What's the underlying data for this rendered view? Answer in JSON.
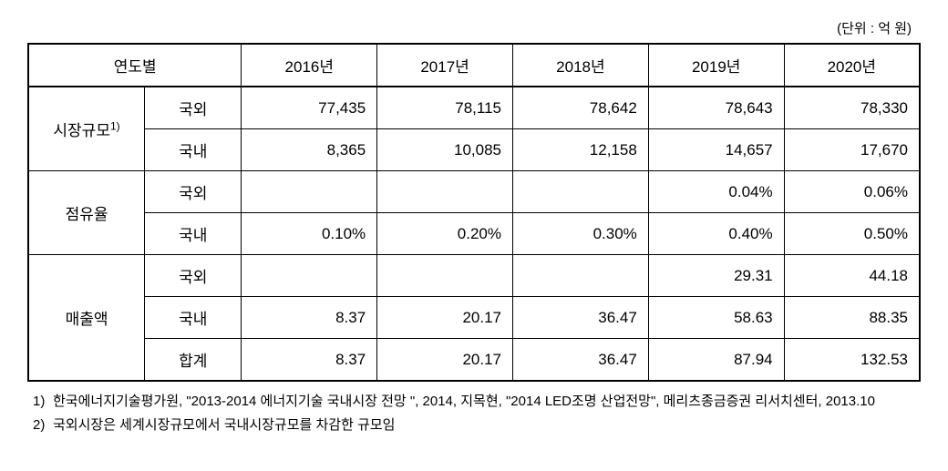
{
  "unit_label": "(단위 : 억 원)",
  "table": {
    "header": {
      "year_label": "연도별",
      "years": [
        "2016년",
        "2017년",
        "2018년",
        "2019년",
        "2020년"
      ]
    },
    "groups": [
      {
        "label": "시장규모",
        "sup": "1)",
        "rows": [
          {
            "sub": "국외",
            "values": [
              "77,435",
              "78,115",
              "78,642",
              "78,643",
              "78,330"
            ]
          },
          {
            "sub": "국내",
            "values": [
              "8,365",
              "10,085",
              "12,158",
              "14,657",
              "17,670"
            ]
          }
        ]
      },
      {
        "label": "점유율",
        "rows": [
          {
            "sub": "국외",
            "values": [
              "",
              "",
              "",
              "0.04%",
              "0.06%"
            ]
          },
          {
            "sub": "국내",
            "values": [
              "0.10%",
              "0.20%",
              "0.30%",
              "0.40%",
              "0.50%"
            ]
          }
        ]
      },
      {
        "label": "매출액",
        "rows": [
          {
            "sub": "국외",
            "values": [
              "",
              "",
              "",
              "29.31",
              "44.18"
            ]
          },
          {
            "sub": "국내",
            "values": [
              "8.37",
              "20.17",
              "36.47",
              "58.63",
              "88.35"
            ]
          },
          {
            "sub": "합계",
            "values": [
              "8.37",
              "20.17",
              "36.47",
              "87.94",
              "132.53"
            ]
          }
        ]
      }
    ]
  },
  "footnotes": [
    {
      "num": "1)",
      "text": "한국에너지기술평가원, \"2013-2014 에너지기술 국내시장 전망 \", 2014, 지목현, \"2014 LED조명 산업전망\", 메리츠종금증권 리서치센터, 2013.10"
    },
    {
      "num": "2)",
      "text": "국외시장은 세계시장규모에서 국내시장규모를 차감한 규모임"
    }
  ],
  "style": {
    "background_color": "#ffffff",
    "border_color": "#000000",
    "font_size_body": 17,
    "font_size_footnote": 15,
    "font_size_unit": 15
  }
}
